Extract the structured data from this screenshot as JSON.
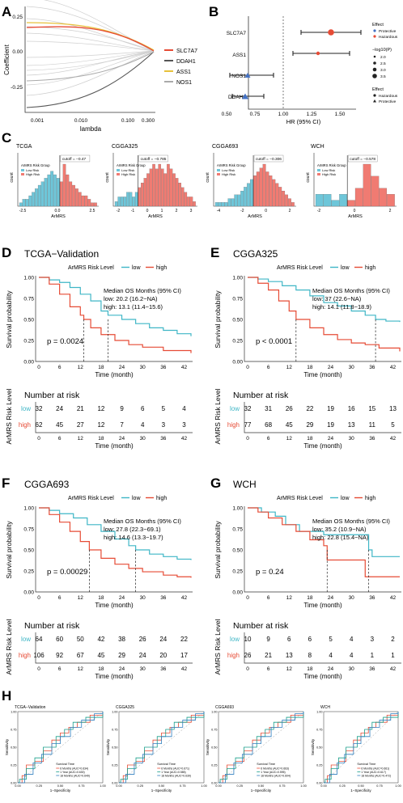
{
  "panel_letters": {
    "A": "A",
    "B": "B",
    "C": "C",
    "D": "D",
    "E": "E",
    "F": "F",
    "G": "G",
    "H": "H"
  },
  "colors": {
    "teal": "#3fb6c6",
    "red": "#e64b35",
    "yellow": "#e7c13b",
    "gray": "#8c8c8c",
    "blue": "#4472c4",
    "dark": "#222222"
  },
  "panelA": {
    "ylabel": "Coefficient",
    "xlabel": "lambda",
    "yticks": [
      "0.25",
      "0.00",
      "-0.25"
    ],
    "xticks": [
      "0.001",
      "0.010",
      "0.100",
      "0.300"
    ],
    "legend": [
      "SLC7A7",
      "DDAH1",
      "ASS1",
      "NOS1"
    ]
  },
  "panelB": {
    "xlabel": "HR (95% CI)",
    "genes": [
      "SLC7A7",
      "ASS1",
      "NOS1",
      "DDAH1"
    ],
    "xticks": [
      "0.50",
      "0.75",
      "1.00",
      "1.25",
      "1.50"
    ],
    "legend_effect_title": "Effect",
    "legend_effect": [
      "Protective",
      "Hazardous"
    ],
    "legend_p_title": "−log10(P)",
    "legend_p": [
      "2.0",
      "2.5",
      "3.0",
      "3.5"
    ],
    "legend_effect2_title": "Effect",
    "legend_effect2": [
      "Hazardous",
      "Protective"
    ]
  },
  "panelC": {
    "titles": [
      "TCGA",
      "CGGA325",
      "CGGA693",
      "WCH"
    ],
    "cutoffs": [
      "cutoff = −0.47",
      "cutoff = −0.785",
      "cutoff = −0.306",
      "cutoff = −0.578"
    ],
    "legend_title": "ArMRS Risk Group",
    "legend_items": [
      "Low Risk",
      "High Risk"
    ],
    "ylabel": "count",
    "xlabel": "ArMRS",
    "xticks": [
      [
        "-2.5",
        "0.0",
        "2.5"
      ],
      [
        "-2",
        "-1",
        "0",
        "1",
        "2",
        "3"
      ],
      [
        "-4",
        "-2",
        "0",
        "2"
      ],
      [
        "-2",
        "0",
        "2"
      ]
    ]
  },
  "km": [
    {
      "title": "TCGA−Validation",
      "median_title": "Median OS Months (95% CI)",
      "low_text": "low: 20.2 (16.2−NA)",
      "high_text": "high: 13.1 (11.4−15.6)",
      "pvalue": "p = 0.0024",
      "risk_low": [
        "32",
        "24",
        "21",
        "12",
        "9",
        "6",
        "5",
        "4"
      ],
      "risk_high": [
        "62",
        "45",
        "27",
        "12",
        "7",
        "4",
        "3",
        "3"
      ]
    },
    {
      "title": "CGGA325",
      "median_title": "Median OS Months (95% CI)",
      "low_text": "low: 37 (22.6−NA)",
      "high_text": "high: 14.1 (11.8−18.9)",
      "pvalue": "p < 0.0001",
      "risk_low": [
        "32",
        "31",
        "26",
        "22",
        "19",
        "16",
        "15",
        "13"
      ],
      "risk_high": [
        "77",
        "68",
        "45",
        "29",
        "19",
        "13",
        "11",
        "5"
      ]
    },
    {
      "title": "CGGA693",
      "median_title": "Median OS Months (95% CI)",
      "low_text": "low: 27.8 (22.3−69.1)",
      "high_text": "high: 14.6 (13.3−19.7)",
      "pvalue": "p = 0.00029",
      "risk_low": [
        "64",
        "60",
        "50",
        "42",
        "38",
        "26",
        "24",
        "22"
      ],
      "risk_high": [
        "106",
        "92",
        "67",
        "45",
        "29",
        "24",
        "20",
        "17"
      ]
    },
    {
      "title": "WCH",
      "median_title": "Median OS Months (95% CI)",
      "low_text": "low: 35.2 (10.9−NA)",
      "high_text": "high: 22.8 (15.4−NA)",
      "pvalue": "p = 0.24",
      "risk_low": [
        "10",
        "9",
        "6",
        "6",
        "5",
        "4",
        "3",
        "2"
      ],
      "risk_high": [
        "26",
        "21",
        "13",
        "8",
        "4",
        "4",
        "1",
        "1"
      ]
    }
  ],
  "km_common": {
    "legend_title": "ArMRS Risk Level",
    "legend_low": "low",
    "legend_high": "high",
    "ylabel": "Survival probability",
    "xlabel": "Time (month)",
    "yticks": [
      "1.00",
      "0.75",
      "0.50",
      "0.25",
      "0.00"
    ],
    "xticks": [
      "0",
      "6",
      "12",
      "18",
      "24",
      "30",
      "36",
      "42"
    ],
    "risk_title": "Number at risk",
    "risk_ylabel": "ArMRS Risk Level",
    "row_low": "low",
    "row_high": "high"
  },
  "roc": {
    "titles": [
      "TCGA−Validation",
      "CGGA325",
      "CGGA693",
      "WCH"
    ],
    "ylabel": "Sensitivity",
    "xlabel": "1−Specificity",
    "ticks": [
      "0.00",
      "0.25",
      "0.50",
      "0.75",
      "1.00"
    ],
    "legend_title": "Survival Time",
    "legends": [
      [
        "6 Months (AUC=0.634)",
        "1 Year (AUC=0.630)",
        "18 Months (AUC=0.649)"
      ],
      [
        "6 Months (AUC=0.671)",
        "1 Year (AUC=0.585)",
        "18 Months (AUC=0.639)"
      ],
      [
        "6 Months (AUC=0.663)",
        "1 Year (AUC=0.595)",
        "18 Months (AUC=0.604)"
      ],
      [
        "6 Months (AUC=0.661)",
        "1 Year (AUC=0.617)",
        "18 Months (AUC=0.472)"
      ]
    ]
  }
}
